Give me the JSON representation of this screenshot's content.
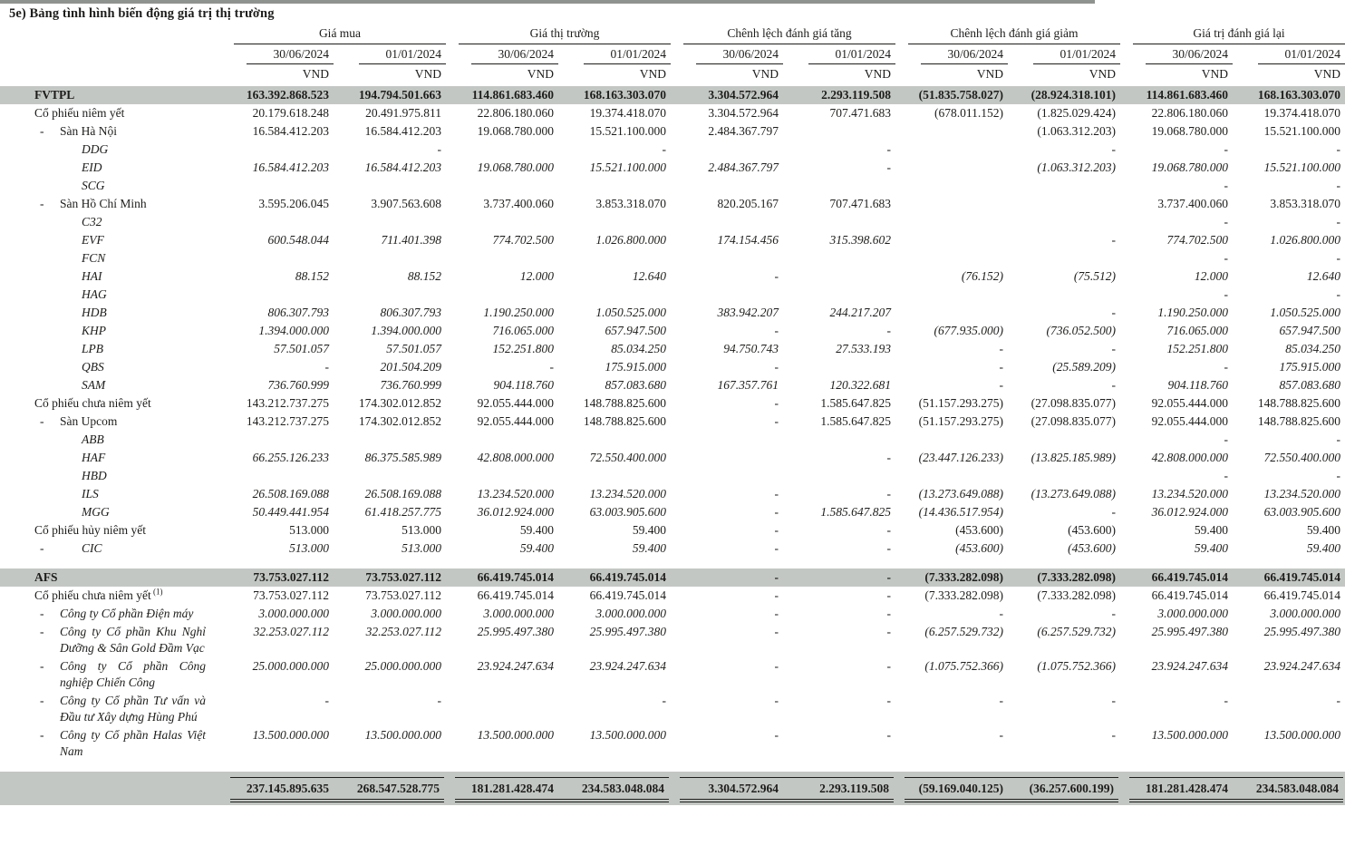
{
  "title": "5e)  Bảng tình hình biến động giá trị thị trường",
  "colors": {
    "text": "#1d1d1b",
    "band_gray": "#c3c7c4",
    "top_strip_gray": "#8e938f"
  },
  "table": {
    "unit": "VND",
    "column_groups": [
      {
        "label": "Giá mua",
        "dates": [
          "30/06/2024",
          "01/01/2024"
        ]
      },
      {
        "label": "Giá thị trường",
        "dates": [
          "30/06/2024",
          "01/01/2024"
        ]
      },
      {
        "label": "Chênh lệch đánh giá tăng",
        "dates": [
          "30/06/2024",
          "01/01/2024"
        ]
      },
      {
        "label": "Chênh lệch đánh giá giảm",
        "dates": [
          "30/06/2024",
          "01/01/2024"
        ]
      },
      {
        "label": "Giá trị đánh giá lại",
        "dates": [
          "30/06/2024",
          "01/01/2024"
        ]
      }
    ],
    "rows": [
      {
        "kind": "band",
        "label": "FVTPL",
        "cells": [
          "163.392.868.523",
          "194.794.501.663",
          "114.861.683.460",
          "168.163.303.070",
          "3.304.572.964",
          "2.293.119.508",
          "(51.835.758.027)",
          "(28.924.318.101)",
          "114.861.683.460",
          "168.163.303.070"
        ]
      },
      {
        "kind": "group",
        "label": "Cổ phiếu niêm yết",
        "cells": [
          "20.179.618.248",
          "20.491.975.811",
          "22.806.180.060",
          "19.374.418.070",
          "3.304.572.964",
          "707.471.683",
          "(678.011.152)",
          "(1.825.029.424)",
          "22.806.180.060",
          "19.374.418.070"
        ]
      },
      {
        "kind": "sub",
        "bullet": "-",
        "label": "Sàn Hà Nội",
        "cells": [
          "16.584.412.203",
          "16.584.412.203",
          "19.068.780.000",
          "15.521.100.000",
          "2.484.367.797",
          "",
          "",
          "(1.063.312.203)",
          "19.068.780.000",
          "15.521.100.000"
        ]
      },
      {
        "kind": "ticker",
        "label": "DDG",
        "cells": [
          "",
          "-",
          "",
          "-",
          "",
          "-",
          "",
          "-",
          "-",
          "-"
        ]
      },
      {
        "kind": "ticker",
        "label": "EID",
        "cells": [
          "16.584.412.203",
          "16.584.412.203",
          "19.068.780.000",
          "15.521.100.000",
          "2.484.367.797",
          "-",
          "",
          "(1.063.312.203)",
          "19.068.780.000",
          "15.521.100.000"
        ]
      },
      {
        "kind": "ticker",
        "label": "SCG",
        "cells": [
          "",
          "",
          "",
          "",
          "",
          "",
          "",
          "",
          "-",
          "-"
        ]
      },
      {
        "kind": "sub",
        "bullet": "-",
        "label": "Sàn Hồ Chí Minh",
        "cells": [
          "3.595.206.045",
          "3.907.563.608",
          "3.737.400.060",
          "3.853.318.070",
          "820.205.167",
          "707.471.683",
          "",
          "",
          "3.737.400.060",
          "3.853.318.070"
        ]
      },
      {
        "kind": "ticker",
        "label": "C32",
        "cells": [
          "",
          "",
          "",
          "",
          "",
          "",
          "",
          "",
          "-",
          "-"
        ]
      },
      {
        "kind": "ticker",
        "label": "EVF",
        "cells": [
          "600.548.044",
          "711.401.398",
          "774.702.500",
          "1.026.800.000",
          "174.154.456",
          "315.398.602",
          "",
          "-",
          "774.702.500",
          "1.026.800.000"
        ]
      },
      {
        "kind": "ticker",
        "label": "FCN",
        "cells": [
          "",
          "",
          "",
          "",
          "",
          "",
          "",
          "",
          "-",
          "-"
        ]
      },
      {
        "kind": "ticker",
        "label": "HAI",
        "cells": [
          "88.152",
          "88.152",
          "12.000",
          "12.640",
          "-",
          "",
          "(76.152)",
          "(75.512)",
          "12.000",
          "12.640"
        ]
      },
      {
        "kind": "ticker",
        "label": "HAG",
        "cells": [
          "",
          "",
          "",
          "",
          "",
          "",
          "",
          "",
          "-",
          "-"
        ]
      },
      {
        "kind": "ticker",
        "label": "HDB",
        "cells": [
          "806.307.793",
          "806.307.793",
          "1.190.250.000",
          "1.050.525.000",
          "383.942.207",
          "244.217.207",
          "",
          "-",
          "1.190.250.000",
          "1.050.525.000"
        ]
      },
      {
        "kind": "ticker",
        "label": "KHP",
        "cells": [
          "1.394.000.000",
          "1.394.000.000",
          "716.065.000",
          "657.947.500",
          "-",
          "-",
          "(677.935.000)",
          "(736.052.500)",
          "716.065.000",
          "657.947.500"
        ]
      },
      {
        "kind": "ticker",
        "label": "LPB",
        "cells": [
          "57.501.057",
          "57.501.057",
          "152.251.800",
          "85.034.250",
          "94.750.743",
          "27.533.193",
          "-",
          "-",
          "152.251.800",
          "85.034.250"
        ]
      },
      {
        "kind": "ticker",
        "label": "QBS",
        "cells": [
          "-",
          "201.504.209",
          "-",
          "175.915.000",
          "-",
          "",
          "-",
          "(25.589.209)",
          "-",
          "175.915.000"
        ]
      },
      {
        "kind": "ticker",
        "label": "SAM",
        "cells": [
          "736.760.999",
          "736.760.999",
          "904.118.760",
          "857.083.680",
          "167.357.761",
          "120.322.681",
          "-",
          "-",
          "904.118.760",
          "857.083.680"
        ]
      },
      {
        "kind": "group",
        "label": "Cổ phiếu chưa niêm yết",
        "cells": [
          "143.212.737.275",
          "174.302.012.852",
          "92.055.444.000",
          "148.788.825.600",
          "-",
          "1.585.647.825",
          "(51.157.293.275)",
          "(27.098.835.077)",
          "92.055.444.000",
          "148.788.825.600"
        ]
      },
      {
        "kind": "sub",
        "bullet": "-",
        "label": "Sàn Upcom",
        "cells": [
          "143.212.737.275",
          "174.302.012.852",
          "92.055.444.000",
          "148.788.825.600",
          "-",
          "1.585.647.825",
          "(51.157.293.275)",
          "(27.098.835.077)",
          "92.055.444.000",
          "148.788.825.600"
        ]
      },
      {
        "kind": "ticker",
        "label": "ABB",
        "cells": [
          "",
          "",
          "",
          "",
          "",
          "",
          "",
          "",
          "-",
          "-"
        ]
      },
      {
        "kind": "ticker",
        "label": "HAF",
        "cells": [
          "66.255.126.233",
          "86.375.585.989",
          "42.808.000.000",
          "72.550.400.000",
          "",
          "-",
          "(23.447.126.233)",
          "(13.825.185.989)",
          "42.808.000.000",
          "72.550.400.000"
        ]
      },
      {
        "kind": "ticker",
        "label": "HBD",
        "cells": [
          "",
          "",
          "",
          "",
          "",
          "",
          "",
          "",
          "-",
          "-"
        ]
      },
      {
        "kind": "ticker",
        "label": "ILS",
        "cells": [
          "26.508.169.088",
          "26.508.169.088",
          "13.234.520.000",
          "13.234.520.000",
          "-",
          "-",
          "(13.273.649.088)",
          "(13.273.649.088)",
          "13.234.520.000",
          "13.234.520.000"
        ]
      },
      {
        "kind": "ticker",
        "label": "MGG",
        "cells": [
          "50.449.441.954",
          "61.418.257.775",
          "36.012.924.000",
          "63.003.905.600",
          "-",
          "1.585.647.825",
          "(14.436.517.954)",
          "-",
          "36.012.924.000",
          "63.003.905.600"
        ]
      },
      {
        "kind": "group",
        "label": "Cổ phiếu hủy niêm yết",
        "cells": [
          "513.000",
          "513.000",
          "59.400",
          "59.400",
          "-",
          "-",
          "(453.600)",
          "(453.600)",
          "59.400",
          "59.400"
        ]
      },
      {
        "kind": "ticker",
        "bullet": "-",
        "label": "CIC",
        "cells": [
          "513.000",
          "513.000",
          "59.400",
          "59.400",
          "-",
          "-",
          "(453.600)",
          "(453.600)",
          "59.400",
          "59.400"
        ]
      },
      {
        "spacer": true
      },
      {
        "kind": "band",
        "label": "AFS",
        "cells": [
          "73.753.027.112",
          "73.753.027.112",
          "66.419.745.014",
          "66.419.745.014",
          "-",
          "-",
          "(7.333.282.098)",
          "(7.333.282.098)",
          "66.419.745.014",
          "66.419.745.014"
        ]
      },
      {
        "kind": "group",
        "label": "Cổ phiếu chưa niêm yết",
        "footnote": "(1)",
        "cells": [
          "73.753.027.112",
          "73.753.027.112",
          "66.419.745.014",
          "66.419.745.014",
          "-",
          "-",
          "(7.333.282.098)",
          "(7.333.282.098)",
          "66.419.745.014",
          "66.419.745.014"
        ]
      },
      {
        "kind": "company",
        "bullet": "-",
        "label": "Công ty Cổ phần Điện máy",
        "cells": [
          "3.000.000.000",
          "3.000.000.000",
          "3.000.000.000",
          "3.000.000.000",
          "-",
          "-",
          "-",
          "-",
          "3.000.000.000",
          "3.000.000.000"
        ]
      },
      {
        "kind": "company",
        "bullet": "-",
        "label": "Công ty Cổ phần Khu Nghỉ Dưỡng & Sân Gold Đầm Vạc",
        "cells": [
          "32.253.027.112",
          "32.253.027.112",
          "25.995.497.380",
          "25.995.497.380",
          "-",
          "-",
          "(6.257.529.732)",
          "(6.257.529.732)",
          "25.995.497.380",
          "25.995.497.380"
        ]
      },
      {
        "kind": "company",
        "bullet": "-",
        "label": "Công ty Cổ phần Công nghiệp Chiến Công",
        "cells": [
          "25.000.000.000",
          "25.000.000.000",
          "23.924.247.634",
          "23.924.247.634",
          "-",
          "-",
          "(1.075.752.366)",
          "(1.075.752.366)",
          "23.924.247.634",
          "23.924.247.634"
        ]
      },
      {
        "kind": "company",
        "bullet": "-",
        "label": "Công ty Cổ phần Tư vấn và Đầu tư Xây dựng Hùng Phú",
        "cells": [
          "-",
          "-",
          "",
          "-",
          "-",
          "-",
          "-",
          "-",
          "-",
          "-"
        ]
      },
      {
        "kind": "company",
        "bullet": "-",
        "label": "Công ty Cổ phần Halas Việt Nam",
        "cells": [
          "13.500.000.000",
          "13.500.000.000",
          "13.500.000.000",
          "13.500.000.000",
          "-",
          "-",
          "-",
          "-",
          "13.500.000.000",
          "13.500.000.000"
        ]
      },
      {
        "spacer": true
      },
      {
        "kind": "grand",
        "label": "",
        "cells": [
          "237.145.895.635",
          "268.547.528.775",
          "181.281.428.474",
          "234.583.048.084",
          "3.304.572.964",
          "2.293.119.508",
          "(59.169.040.125)",
          "(36.257.600.199)",
          "181.281.428.474",
          "234.583.048.084"
        ]
      }
    ]
  }
}
